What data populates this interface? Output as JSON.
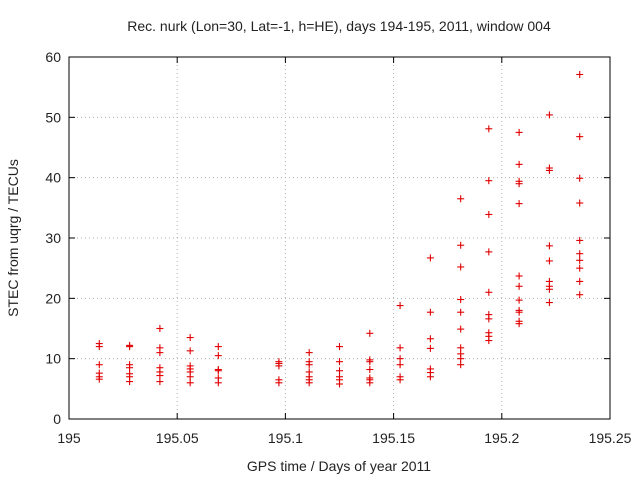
{
  "chart_data": {
    "type": "scatter",
    "title": "Rec. nurk (Lon=30, Lat=-1, h=HE), days 194-195, 2011, window 004",
    "xlabel": "GPS time / Days of year 2011",
    "ylabel": "STEC from uqrg / TECUs",
    "xlim": [
      195,
      195.25
    ],
    "ylim": [
      0,
      60
    ],
    "xticks": [
      195,
      195.05,
      195.1,
      195.15,
      195.2,
      195.25
    ],
    "xtick_labels": [
      "195",
      "195.05",
      "195.1",
      "195.15",
      "195.2",
      "195.25"
    ],
    "yticks": [
      0,
      10,
      20,
      30,
      40,
      50,
      60
    ],
    "ytick_labels": [
      "0",
      "10",
      "20",
      "30",
      "40",
      "50",
      "60"
    ],
    "grid": true,
    "marker": "plus",
    "color": "#e00000",
    "points": [
      [
        195.014,
        12.5
      ],
      [
        195.014,
        12.0
      ],
      [
        195.014,
        9.0
      ],
      [
        195.014,
        7.6
      ],
      [
        195.014,
        7.0
      ],
      [
        195.014,
        6.6
      ],
      [
        195.028,
        12.2
      ],
      [
        195.028,
        12.0
      ],
      [
        195.028,
        9.0
      ],
      [
        195.028,
        8.5
      ],
      [
        195.028,
        7.5
      ],
      [
        195.028,
        7.0
      ],
      [
        195.028,
        6.2
      ],
      [
        195.042,
        15.0
      ],
      [
        195.042,
        11.8
      ],
      [
        195.042,
        11.0
      ],
      [
        195.042,
        8.5
      ],
      [
        195.042,
        7.8
      ],
      [
        195.042,
        7.2
      ],
      [
        195.042,
        6.2
      ],
      [
        195.056,
        13.5
      ],
      [
        195.056,
        11.3
      ],
      [
        195.056,
        8.8
      ],
      [
        195.056,
        8.3
      ],
      [
        195.056,
        7.8
      ],
      [
        195.056,
        7.0
      ],
      [
        195.056,
        6.0
      ],
      [
        195.069,
        12.0
      ],
      [
        195.069,
        10.5
      ],
      [
        195.069,
        8.2
      ],
      [
        195.069,
        8.0
      ],
      [
        195.069,
        6.8
      ],
      [
        195.069,
        6.0
      ],
      [
        195.097,
        9.5
      ],
      [
        195.097,
        9.2
      ],
      [
        195.097,
        8.8
      ],
      [
        195.097,
        6.5
      ],
      [
        195.097,
        6.0
      ],
      [
        195.111,
        11.0
      ],
      [
        195.111,
        9.5
      ],
      [
        195.111,
        9.0
      ],
      [
        195.111,
        7.8
      ],
      [
        195.111,
        7.0
      ],
      [
        195.111,
        6.5
      ],
      [
        195.111,
        6.0
      ],
      [
        195.125,
        12.0
      ],
      [
        195.125,
        9.5
      ],
      [
        195.125,
        8.0
      ],
      [
        195.125,
        7.0
      ],
      [
        195.125,
        6.5
      ],
      [
        195.125,
        5.8
      ],
      [
        195.139,
        14.2
      ],
      [
        195.139,
        9.8
      ],
      [
        195.139,
        9.5
      ],
      [
        195.139,
        8.2
      ],
      [
        195.139,
        6.8
      ],
      [
        195.139,
        6.5
      ],
      [
        195.139,
        6.0
      ],
      [
        195.153,
        18.8
      ],
      [
        195.153,
        11.8
      ],
      [
        195.153,
        10.0
      ],
      [
        195.153,
        9.0
      ],
      [
        195.153,
        7.0
      ],
      [
        195.153,
        6.5
      ],
      [
        195.167,
        26.7
      ],
      [
        195.167,
        17.7
      ],
      [
        195.167,
        13.3
      ],
      [
        195.167,
        11.7
      ],
      [
        195.167,
        8.3
      ],
      [
        195.167,
        7.7
      ],
      [
        195.167,
        7.0
      ],
      [
        195.181,
        36.5
      ],
      [
        195.181,
        28.8
      ],
      [
        195.181,
        25.2
      ],
      [
        195.181,
        19.8
      ],
      [
        195.181,
        17.7
      ],
      [
        195.181,
        14.9
      ],
      [
        195.181,
        11.8
      ],
      [
        195.181,
        10.8
      ],
      [
        195.181,
        10.0
      ],
      [
        195.181,
        9.0
      ],
      [
        195.194,
        48.1
      ],
      [
        195.194,
        39.5
      ],
      [
        195.194,
        33.9
      ],
      [
        195.194,
        27.7
      ],
      [
        195.194,
        21.0
      ],
      [
        195.194,
        17.3
      ],
      [
        195.194,
        16.6
      ],
      [
        195.194,
        14.3
      ],
      [
        195.194,
        13.7
      ],
      [
        195.194,
        13.0
      ],
      [
        195.208,
        47.5
      ],
      [
        195.208,
        42.2
      ],
      [
        195.208,
        39.4
      ],
      [
        195.208,
        39.0
      ],
      [
        195.208,
        35.7
      ],
      [
        195.208,
        23.7
      ],
      [
        195.208,
        22.0
      ],
      [
        195.208,
        19.7
      ],
      [
        195.208,
        18.0
      ],
      [
        195.208,
        17.7
      ],
      [
        195.208,
        16.2
      ],
      [
        195.208,
        15.8
      ],
      [
        195.222,
        50.4
      ],
      [
        195.222,
        41.6
      ],
      [
        195.222,
        41.2
      ],
      [
        195.222,
        28.7
      ],
      [
        195.222,
        26.2
      ],
      [
        195.222,
        22.8
      ],
      [
        195.222,
        22.0
      ],
      [
        195.222,
        21.5
      ],
      [
        195.222,
        19.3
      ],
      [
        195.236,
        57.1
      ],
      [
        195.236,
        46.8
      ],
      [
        195.236,
        39.9
      ],
      [
        195.236,
        35.8
      ],
      [
        195.236,
        29.6
      ],
      [
        195.236,
        27.4
      ],
      [
        195.236,
        26.3
      ],
      [
        195.236,
        25.0
      ],
      [
        195.236,
        22.8
      ],
      [
        195.236,
        20.6
      ]
    ]
  }
}
